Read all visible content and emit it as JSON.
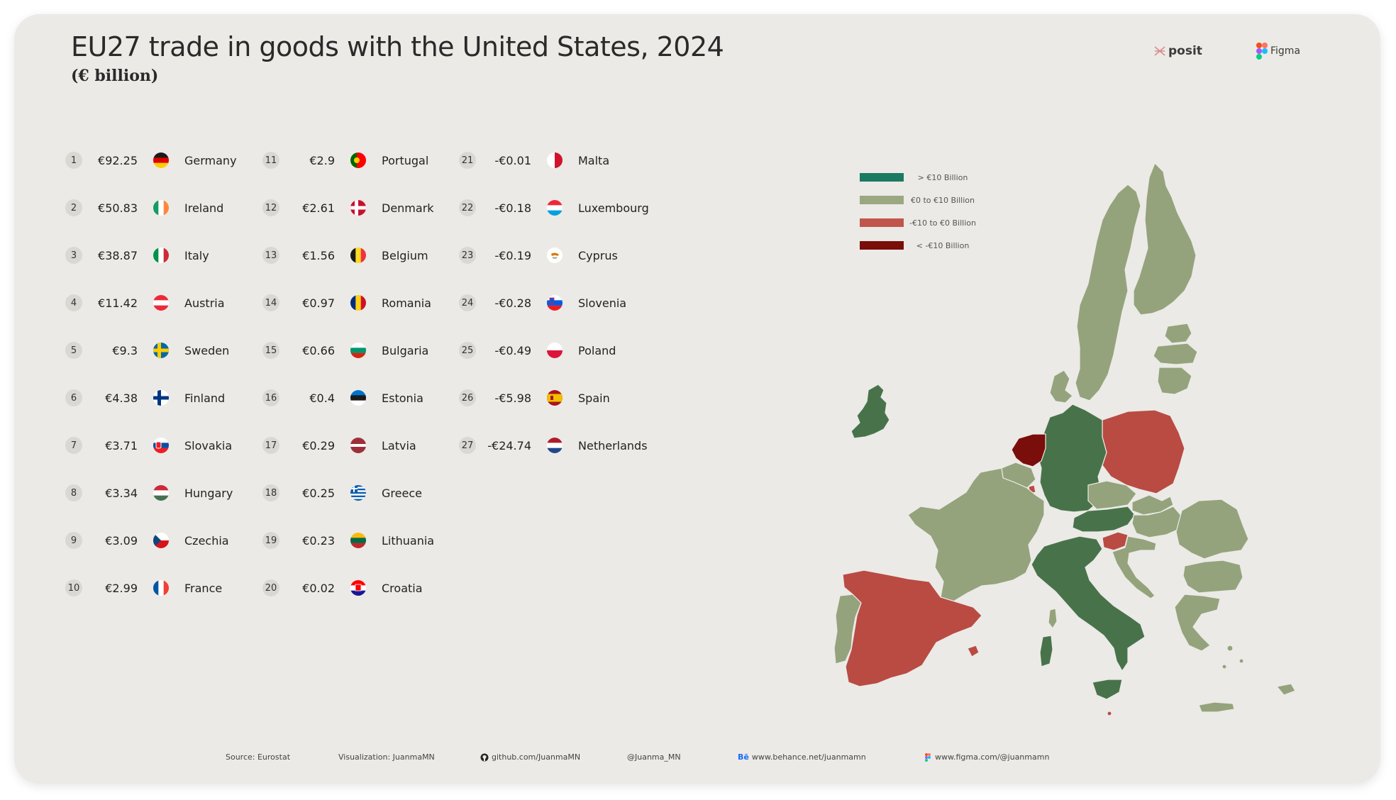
{
  "header": {
    "title": "EU27 trade in goods with the United States, 2024",
    "subtitle": "(€ billion)"
  },
  "brands": {
    "posit": "posit",
    "figma": "Figma"
  },
  "ranking": [
    {
      "rank": "1",
      "value": "€92.25",
      "country": "Germany",
      "flag": "germany-flag"
    },
    {
      "rank": "2",
      "value": "€50.83",
      "country": "Ireland",
      "flag": "ireland-flag"
    },
    {
      "rank": "3",
      "value": "€38.87",
      "country": "Italy",
      "flag": "italy-flag"
    },
    {
      "rank": "4",
      "value": "€11.42",
      "country": "Austria",
      "flag": "austria-flag"
    },
    {
      "rank": "5",
      "value": "€9.3",
      "country": "Sweden",
      "flag": "sweden-flag"
    },
    {
      "rank": "6",
      "value": "€4.38",
      "country": "Finland",
      "flag": "finland-flag"
    },
    {
      "rank": "7",
      "value": "€3.71",
      "country": "Slovakia",
      "flag": "slovakia-flag"
    },
    {
      "rank": "8",
      "value": "€3.34",
      "country": "Hungary",
      "flag": "hungary-flag"
    },
    {
      "rank": "9",
      "value": "€3.09",
      "country": "Czechia",
      "flag": "czechia-flag"
    },
    {
      "rank": "10",
      "value": "€2.99",
      "country": "France",
      "flag": "france-flag"
    },
    {
      "rank": "11",
      "value": "€2.9",
      "country": "Portugal",
      "flag": "portugal-flag"
    },
    {
      "rank": "12",
      "value": "€2.61",
      "country": "Denmark",
      "flag": "denmark-flag"
    },
    {
      "rank": "13",
      "value": "€1.56",
      "country": "Belgium",
      "flag": "belgium-flag"
    },
    {
      "rank": "14",
      "value": "€0.97",
      "country": "Romania",
      "flag": "romania-flag"
    },
    {
      "rank": "15",
      "value": "€0.66",
      "country": "Bulgaria",
      "flag": "bulgaria-flag"
    },
    {
      "rank": "16",
      "value": "€0.4",
      "country": "Estonia",
      "flag": "estonia-flag"
    },
    {
      "rank": "17",
      "value": "€0.29",
      "country": "Latvia",
      "flag": "latvia-flag"
    },
    {
      "rank": "18",
      "value": "€0.25",
      "country": "Greece",
      "flag": "greece-flag"
    },
    {
      "rank": "19",
      "value": "€0.23",
      "country": "Lithuania",
      "flag": "lithuania-flag"
    },
    {
      "rank": "20",
      "value": "€0.02",
      "country": "Croatia",
      "flag": "croatia-flag"
    },
    {
      "rank": "21",
      "value": "-€0.01",
      "country": "Malta",
      "flag": "malta-flag"
    },
    {
      "rank": "22",
      "value": "-€0.18",
      "country": "Luxembourg",
      "flag": "luxembourg-flag"
    },
    {
      "rank": "23",
      "value": "-€0.19",
      "country": "Cyprus",
      "flag": "cyprus-flag"
    },
    {
      "rank": "24",
      "value": "-€0.28",
      "country": "Slovenia",
      "flag": "slovenia-flag"
    },
    {
      "rank": "25",
      "value": "-€0.49",
      "country": "Poland",
      "flag": "poland-flag"
    },
    {
      "rank": "26",
      "value": "-€5.98",
      "country": "Spain",
      "flag": "spain-flag"
    },
    {
      "rank": "27",
      "value": "-€24.74",
      "country": "Netherlands",
      "flag": "netherlands-flag"
    }
  ],
  "legend": [
    {
      "label": "> €10 Billion",
      "color": "#1a7a62"
    },
    {
      "label": "€0 to €10 Billion",
      "color": "#9aa781"
    },
    {
      "label": "-€10 to €0 Billion",
      "color": "#c0564b"
    },
    {
      "label": "< -€10 Billion",
      "color": "#7a0e0a"
    }
  ],
  "map_colors": {
    "high": "#48734a",
    "mid": "#94a37c",
    "low": "#b94b43",
    "lowest": "#7a0e0a"
  },
  "footer": {
    "source": "Source: Eurostat",
    "visualization": "Visualization: JuanmaMN",
    "github": "github.com/JuanmaMN",
    "twitter": "@Juanma_MN",
    "behance": "www.behance.net/juanmamn",
    "figma": "www.figma.com/@juanmamn"
  }
}
